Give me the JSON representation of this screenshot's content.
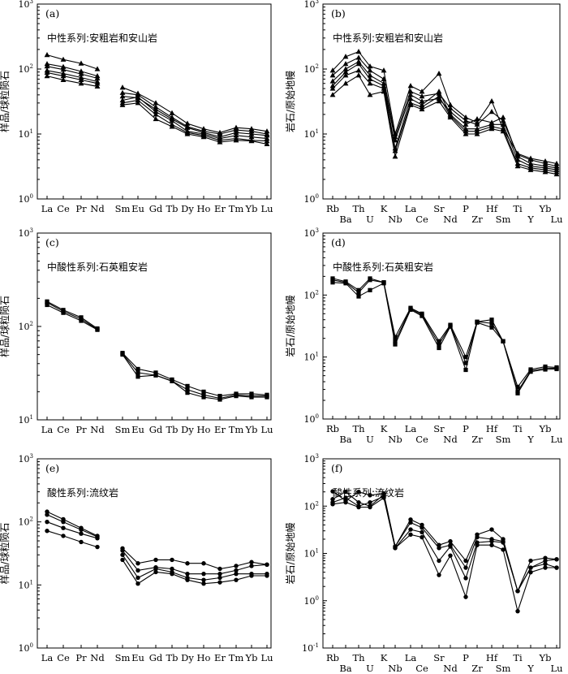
{
  "chart_data": [
    {
      "id": "a",
      "type": "line",
      "panel_label": "(a)",
      "title": "中性系列:安粗岩和安山岩",
      "ylabel": "样品/球粒陨石",
      "yscale": "log",
      "ylim": [
        1,
        1000
      ],
      "ytick_exponents": [
        0,
        1,
        2,
        3
      ],
      "marker": "triangle",
      "categories": [
        "La",
        "Ce",
        "Pr",
        "Nd",
        "",
        "Sm",
        "Eu",
        "Gd",
        "Tb",
        "Dy",
        "Ho",
        "Er",
        "Tm",
        "Yb",
        "Lu"
      ],
      "series": [
        {
          "values": [
            165,
            140,
            122,
            100,
            null,
            52,
            42,
            30,
            21,
            14.5,
            12,
            10.5,
            12.5,
            12,
            11
          ]
        },
        {
          "values": [
            120,
            108,
            92,
            78,
            null,
            43,
            40,
            26,
            18,
            13,
            11,
            10,
            11.5,
            11,
            10
          ]
        },
        {
          "values": [
            110,
            98,
            84,
            72,
            null,
            38,
            36,
            24,
            17,
            12.5,
            10.5,
            9,
            10.5,
            10,
            9.5
          ]
        },
        {
          "values": [
            95,
            85,
            74,
            64,
            null,
            33,
            37,
            22,
            16,
            11,
            10,
            8.5,
            9.5,
            9,
            8.5
          ]
        },
        {
          "values": [
            88,
            78,
            68,
            60,
            null,
            30,
            33,
            20,
            14,
            10.5,
            9.5,
            8,
            8.5,
            8,
            7.8
          ]
        },
        {
          "values": [
            78,
            68,
            60,
            54,
            null,
            28,
            30,
            17,
            13,
            10,
            9,
            7.5,
            8,
            7.8,
            7
          ]
        }
      ]
    },
    {
      "id": "b",
      "type": "line",
      "panel_label": "(b)",
      "title": "中性系列:安粗岩和安山岩",
      "ylabel": "岩石/原始地幔",
      "yscale": "log",
      "ylim": [
        1,
        1000
      ],
      "ytick_exponents": [
        0,
        1,
        2,
        3
      ],
      "marker": "triangle",
      "categories": [
        "Rb",
        "Ba",
        "Th",
        "U",
        "K",
        "Nb",
        "La",
        "Ce",
        "Sr",
        "Nd",
        "P",
        "Zr",
        "Hf",
        "Sm",
        "Ti",
        "Y",
        "Yb",
        "Lu"
      ],
      "series": [
        {
          "values": [
            95,
            155,
            185,
            110,
            95,
            10,
            55,
            45,
            85,
            28,
            18,
            15,
            32,
            12,
            5,
            4.2,
            3.8,
            3.5
          ]
        },
        {
          "values": [
            80,
            120,
            150,
            95,
            70,
            9,
            45,
            38,
            42,
            25,
            16,
            14,
            22,
            16,
            4.8,
            4,
            3.5,
            3.2
          ]
        },
        {
          "values": [
            65,
            100,
            130,
            80,
            60,
            8,
            40,
            32,
            35,
            22,
            14,
            17,
            15,
            18,
            4.5,
            3.5,
            3.2,
            3
          ]
        },
        {
          "values": [
            55,
            90,
            120,
            70,
            55,
            6,
            35,
            28,
            45,
            20,
            12,
            12,
            14,
            14,
            4,
            3.2,
            3,
            2.8
          ]
        },
        {
          "values": [
            50,
            80,
            95,
            60,
            50,
            5.5,
            30,
            26,
            38,
            19,
            11,
            11,
            13,
            12,
            3.5,
            3,
            2.8,
            2.6
          ]
        },
        {
          "values": [
            40,
            60,
            80,
            40,
            45,
            4.5,
            28,
            24,
            32,
            18,
            10,
            10,
            12,
            11,
            3.2,
            2.8,
            2.6,
            2.4
          ]
        }
      ]
    },
    {
      "id": "c",
      "type": "line",
      "panel_label": "(c)",
      "title": "中酸性系列:石英粗安岩",
      "ylabel": "样品/球粒陨石",
      "yscale": "log",
      "ylim": [
        10,
        1000
      ],
      "ytick_exponents": [
        1,
        2,
        3
      ],
      "marker": "square",
      "categories": [
        "La",
        "Ce",
        "Pr",
        "Nd",
        "",
        "Sm",
        "Eu",
        "Gd",
        "Tb",
        "Dy",
        "Ho",
        "Er",
        "Tm",
        "Yb",
        "Lu"
      ],
      "series": [
        {
          "values": [
            185,
            150,
            125,
            95,
            null,
            52,
            35,
            32,
            27,
            23,
            20,
            18,
            19,
            19,
            18.5
          ]
        },
        {
          "values": [
            180,
            145,
            120,
            93,
            null,
            51,
            32,
            30,
            26,
            21,
            18.5,
            17,
            18.5,
            18,
            18
          ]
        },
        {
          "values": [
            170,
            140,
            115,
            92,
            null,
            50,
            29,
            30,
            26,
            19.5,
            17.5,
            16.5,
            18,
            17.5,
            17.5
          ]
        }
      ]
    },
    {
      "id": "d",
      "type": "line",
      "panel_label": "(d)",
      "title": "中酸性系列:石英粗安岩",
      "ylabel": "岩石/原始地幔",
      "yscale": "log",
      "ylim": [
        1,
        1000
      ],
      "ytick_exponents": [
        0,
        1,
        2,
        3
      ],
      "marker": "square",
      "categories": [
        "Rb",
        "Ba",
        "Th",
        "U",
        "K",
        "Nb",
        "La",
        "Ce",
        "Sr",
        "Nd",
        "P",
        "Zr",
        "Hf",
        "Sm",
        "Ti",
        "Y",
        "Yb",
        "Lu"
      ],
      "series": [
        {
          "values": [
            185,
            165,
            120,
            185,
            160,
            21,
            62,
            50,
            18,
            33,
            10,
            37,
            40,
            18,
            3.3,
            6.3,
            7,
            6.8
          ]
        },
        {
          "values": [
            175,
            160,
            110,
            175,
            160,
            18,
            60,
            48,
            16,
            32,
            8,
            37,
            35,
            18,
            2.8,
            6,
            6.6,
            6.6
          ]
        },
        {
          "values": [
            160,
            155,
            95,
            120,
            155,
            16,
            58,
            46,
            14,
            31,
            6.2,
            36,
            30,
            18,
            2.6,
            5.8,
            6.3,
            6.4
          ]
        }
      ]
    },
    {
      "id": "e",
      "type": "line",
      "panel_label": "(e)",
      "title": "酸性系列:流纹岩",
      "ylabel": "样品/球粒陨石",
      "yscale": "log",
      "ylim": [
        1,
        1000
      ],
      "ytick_exponents": [
        0,
        1,
        2,
        3
      ],
      "marker": "circle",
      "categories": [
        "La",
        "Ce",
        "Pr",
        "Nd",
        "",
        "Sm",
        "Eu",
        "Gd",
        "Tb",
        "Dy",
        "Ho",
        "Er",
        "Tm",
        "Yb",
        "Lu"
      ],
      "series": [
        {
          "values": [
            145,
            110,
            80,
            60,
            null,
            38,
            22,
            25,
            25,
            22,
            22,
            18,
            20,
            23,
            21
          ]
        },
        {
          "values": [
            130,
            100,
            75,
            58,
            null,
            35,
            17,
            19,
            18,
            15,
            15,
            15,
            17,
            20,
            21
          ]
        },
        {
          "values": [
            100,
            80,
            65,
            55,
            null,
            30,
            13,
            18,
            16,
            13,
            12,
            13,
            15,
            15,
            15
          ]
        },
        {
          "values": [
            72,
            60,
            48,
            40,
            null,
            25,
            10.5,
            16,
            15,
            12,
            10.5,
            11,
            12,
            14,
            14
          ]
        }
      ]
    },
    {
      "id": "f",
      "type": "line",
      "panel_label": "(f)",
      "title": "酸性系列:流纹岩",
      "ylabel": "岩石/原始地幔",
      "yscale": "log",
      "ylim": [
        0.1,
        1000
      ],
      "ytick_exponents": [
        -1,
        0,
        1,
        2,
        3
      ],
      "marker": "circle",
      "categories": [
        "Rb",
        "Ba",
        "Th",
        "U",
        "K",
        "Nb",
        "La",
        "Ce",
        "Sr",
        "Nd",
        "P",
        "Zr",
        "Hf",
        "Sm",
        "Ti",
        "Y",
        "Yb",
        "Lu"
      ],
      "series": [
        {
          "values": [
            205,
            130,
            200,
            170,
            185,
            14,
            52,
            40,
            15,
            18,
            7,
            25,
            32,
            20,
            1.6,
            7,
            8,
            7.5
          ]
        },
        {
          "values": [
            140,
            200,
            120,
            100,
            175,
            14,
            45,
            35,
            13,
            15,
            5,
            22,
            20,
            18,
            1.6,
            5,
            7,
            7.5
          ]
        },
        {
          "values": [
            120,
            150,
            100,
            120,
            160,
            13,
            32,
            28,
            7,
            14,
            3,
            17,
            18,
            17,
            1.6,
            5,
            6,
            5
          ]
        },
        {
          "values": [
            110,
            120,
            95,
            95,
            150,
            13,
            25,
            22,
            3.5,
            9,
            1.2,
            15,
            15,
            12,
            0.6,
            4,
            5,
            5
          ]
        }
      ]
    }
  ]
}
